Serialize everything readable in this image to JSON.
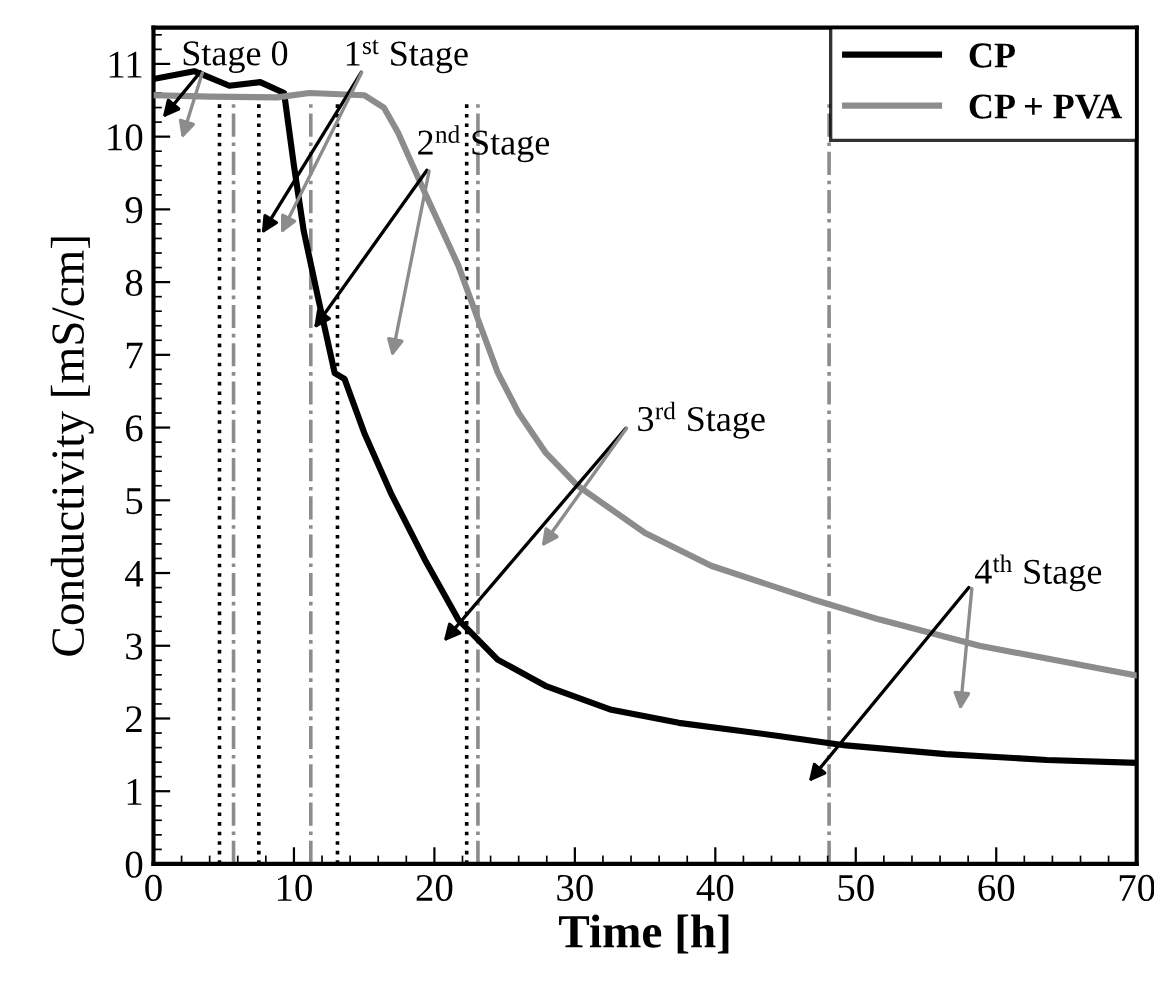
{
  "chart_data": {
    "type": "line",
    "xlabel": "Time [h]",
    "ylabel": "Conductivity [mS/cm]",
    "xlim": [
      0,
      70
    ],
    "ylim": [
      0,
      11.5
    ],
    "xticks": [
      0,
      10,
      20,
      30,
      40,
      50,
      60,
      70
    ],
    "yticks": [
      0,
      1,
      2,
      3,
      4,
      5,
      6,
      7,
      8,
      9,
      10,
      11
    ],
    "grid": false,
    "legend": "top right",
    "marker": "none",
    "line_style": "solid",
    "series": [
      {
        "name": "CP",
        "color": "#000000",
        "x": [
          0.2,
          2.9,
          5.4,
          7.6,
          9.3,
          10.0,
          10.7,
          11.7,
          12.9,
          13.6,
          15,
          16.9,
          19.3,
          21.7,
          24.5,
          27.9,
          32.6,
          37.4,
          44.5,
          49.3,
          56.4,
          63.6,
          70
        ],
        "values": [
          10.8,
          10.9,
          10.7,
          10.75,
          10.6,
          9.6,
          8.7,
          7.8,
          6.75,
          6.67,
          5.93,
          5.1,
          4.19,
          3.36,
          2.81,
          2.45,
          2.12,
          1.94,
          1.76,
          1.63,
          1.51,
          1.43,
          1.39
        ]
      },
      {
        "name": "CP + PVA",
        "color": "#8c8c8c",
        "x": [
          0.2,
          4,
          8.8,
          11.1,
          15,
          16.4,
          17.4,
          19.3,
          21.7,
          23.1,
          24.5,
          26,
          27.9,
          30.2,
          35,
          39.7,
          46.9,
          51.7,
          58.8,
          70
        ],
        "values": [
          10.57,
          10.55,
          10.54,
          10.6,
          10.57,
          10.4,
          10.06,
          9.24,
          8.23,
          7.49,
          6.76,
          6.2,
          5.66,
          5.2,
          4.55,
          4.1,
          3.64,
          3.36,
          3.0,
          2.59
        ]
      }
    ],
    "ref_lines": [
      {
        "axis": "x",
        "value": 4.7,
        "label": null,
        "color": "#000000",
        "line_style": "dotted"
      },
      {
        "axis": "x",
        "value": 5.7,
        "label": null,
        "color": "#8c8c8c",
        "line_style": "dashdot"
      },
      {
        "axis": "x",
        "value": 7.5,
        "label": null,
        "color": "#000000",
        "line_style": "dotted"
      },
      {
        "axis": "x",
        "value": 11.2,
        "label": null,
        "color": "#8c8c8c",
        "line_style": "dashdot"
      },
      {
        "axis": "x",
        "value": 13.1,
        "label": null,
        "color": "#000000",
        "line_style": "dotted"
      },
      {
        "axis": "x",
        "value": 22.3,
        "label": null,
        "color": "#000000",
        "line_style": "dotted"
      },
      {
        "axis": "x",
        "value": 23.1,
        "label": null,
        "color": "#8c8c8c",
        "line_style": "dashdot"
      },
      {
        "axis": "x",
        "value": 48.1,
        "label": null,
        "color": "#8c8c8c",
        "line_style": "dashdot"
      }
    ],
    "annotations": [
      "Stage 0",
      {
        "text": "1$^{st}$ Stage",
        "x": 7.5,
        "y": 8.6
      },
      {
        "text": "2$^{nd}$ Stage",
        "x": 11.2,
        "y": 7.3
      },
      "3$^{rd}$ Stage",
      "4$^{th}$ Stage"
    ]
  }
}
